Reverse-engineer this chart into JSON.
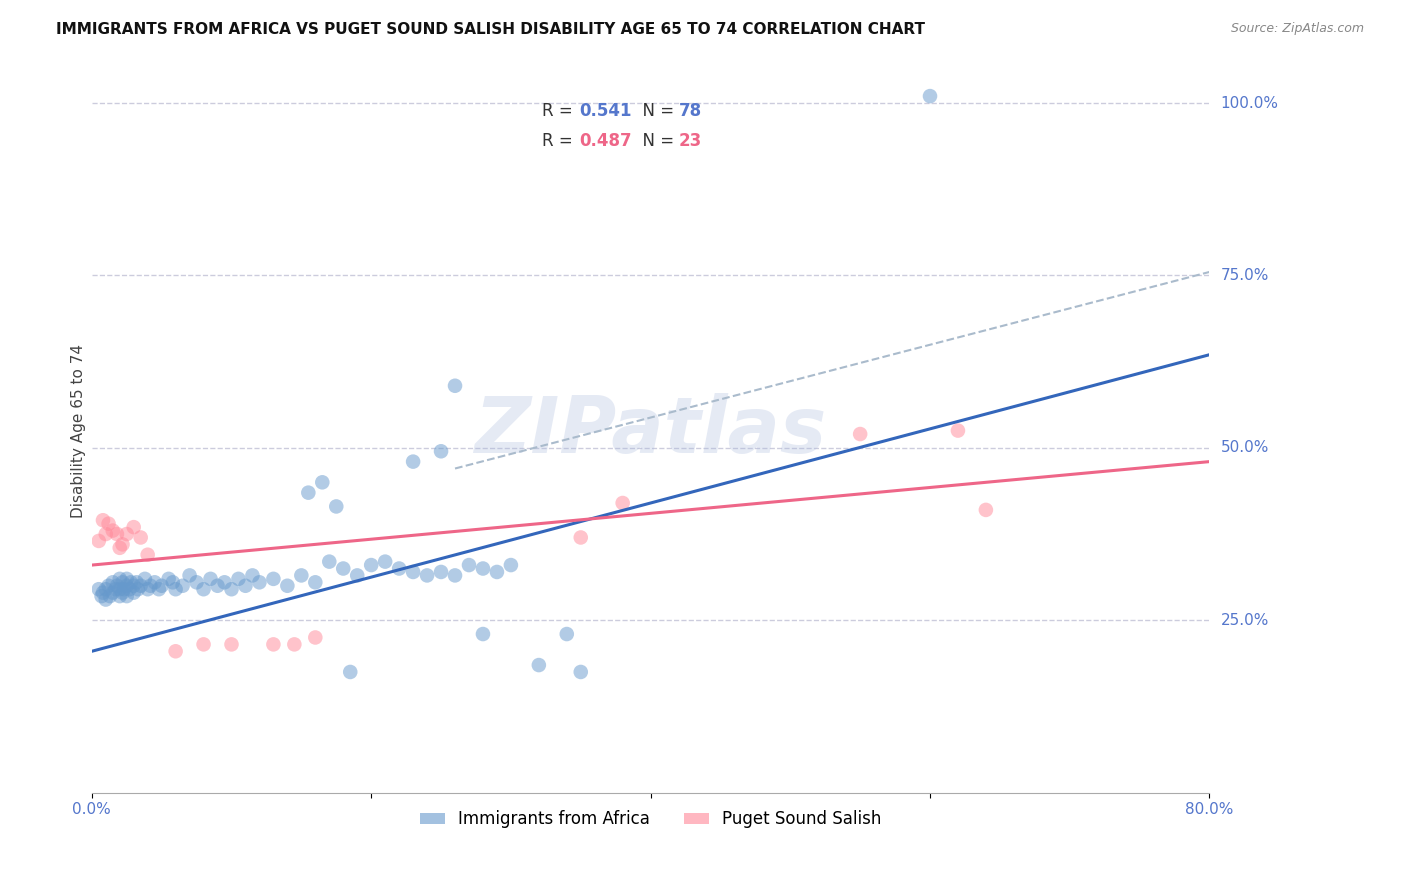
{
  "title": "IMMIGRANTS FROM AFRICA VS PUGET SOUND SALISH DISABILITY AGE 65 TO 74 CORRELATION CHART",
  "source": "Source: ZipAtlas.com",
  "ylabel_label": "Disability Age 65 to 74",
  "x_min": 0.0,
  "x_max": 0.8,
  "y_min": 0.0,
  "y_max": 1.05,
  "x_ticks": [
    0.0,
    0.2,
    0.4,
    0.6,
    0.8
  ],
  "y_tick_labels": [
    "100.0%",
    "75.0%",
    "50.0%",
    "25.0%"
  ],
  "y_ticks": [
    1.0,
    0.75,
    0.5,
    0.25
  ],
  "blue_R": 0.541,
  "blue_N": 78,
  "pink_R": 0.487,
  "pink_N": 23,
  "blue_color": "#6699CC",
  "pink_color": "#FF8899",
  "line_blue": "#3366BB",
  "line_pink": "#EE6688",
  "line_dashed_color": "#AABBCC",
  "watermark": "ZIPatlas",
  "blue_scatter_x": [
    0.005,
    0.007,
    0.008,
    0.01,
    0.01,
    0.012,
    0.013,
    0.015,
    0.015,
    0.017,
    0.018,
    0.02,
    0.02,
    0.02,
    0.022,
    0.022,
    0.023,
    0.025,
    0.025,
    0.025,
    0.027,
    0.028,
    0.03,
    0.03,
    0.032,
    0.033,
    0.035,
    0.038,
    0.04,
    0.042,
    0.045,
    0.048,
    0.05,
    0.055,
    0.058,
    0.06,
    0.065,
    0.07,
    0.075,
    0.08,
    0.085,
    0.09,
    0.095,
    0.1,
    0.105,
    0.11,
    0.115,
    0.12,
    0.13,
    0.14,
    0.15,
    0.16,
    0.17,
    0.18,
    0.19,
    0.2,
    0.21,
    0.22,
    0.23,
    0.24,
    0.25,
    0.26,
    0.27,
    0.28,
    0.29,
    0.3,
    0.155,
    0.165,
    0.175,
    0.185,
    0.34,
    0.35,
    0.23,
    0.25,
    0.6,
    0.26,
    0.28,
    0.32
  ],
  "blue_scatter_y": [
    0.295,
    0.285,
    0.29,
    0.28,
    0.295,
    0.3,
    0.285,
    0.29,
    0.305,
    0.295,
    0.3,
    0.285,
    0.295,
    0.31,
    0.29,
    0.305,
    0.295,
    0.285,
    0.3,
    0.31,
    0.295,
    0.305,
    0.29,
    0.3,
    0.305,
    0.295,
    0.3,
    0.31,
    0.295,
    0.3,
    0.305,
    0.295,
    0.3,
    0.31,
    0.305,
    0.295,
    0.3,
    0.315,
    0.305,
    0.295,
    0.31,
    0.3,
    0.305,
    0.295,
    0.31,
    0.3,
    0.315,
    0.305,
    0.31,
    0.3,
    0.315,
    0.305,
    0.335,
    0.325,
    0.315,
    0.33,
    0.335,
    0.325,
    0.32,
    0.315,
    0.32,
    0.315,
    0.33,
    0.325,
    0.32,
    0.33,
    0.435,
    0.45,
    0.415,
    0.175,
    0.23,
    0.175,
    0.48,
    0.495,
    1.01,
    0.59,
    0.23,
    0.185
  ],
  "pink_scatter_x": [
    0.005,
    0.008,
    0.01,
    0.012,
    0.015,
    0.018,
    0.02,
    0.022,
    0.025,
    0.03,
    0.035,
    0.04,
    0.06,
    0.08,
    0.1,
    0.55,
    0.62,
    0.64,
    0.35,
    0.38,
    0.13,
    0.145,
    0.16
  ],
  "pink_scatter_y": [
    0.365,
    0.395,
    0.375,
    0.39,
    0.38,
    0.375,
    0.355,
    0.36,
    0.375,
    0.385,
    0.37,
    0.345,
    0.205,
    0.215,
    0.215,
    0.52,
    0.525,
    0.41,
    0.37,
    0.42,
    0.215,
    0.215,
    0.225
  ],
  "blue_trendline_x": [
    0.0,
    0.8
  ],
  "blue_trendline_y": [
    0.205,
    0.635
  ],
  "pink_trendline_x": [
    0.0,
    0.8
  ],
  "pink_trendline_y": [
    0.33,
    0.48
  ],
  "dashed_line_x": [
    0.26,
    0.8
  ],
  "dashed_line_y": [
    0.47,
    0.755
  ],
  "grid_color": "#CCCCDD",
  "background_color": "#FFFFFF",
  "tick_label_color": "#5577CC",
  "title_fontsize": 11,
  "source_fontsize": 9,
  "legend_fontsize": 12,
  "axis_label_fontsize": 11,
  "tick_fontsize": 11
}
